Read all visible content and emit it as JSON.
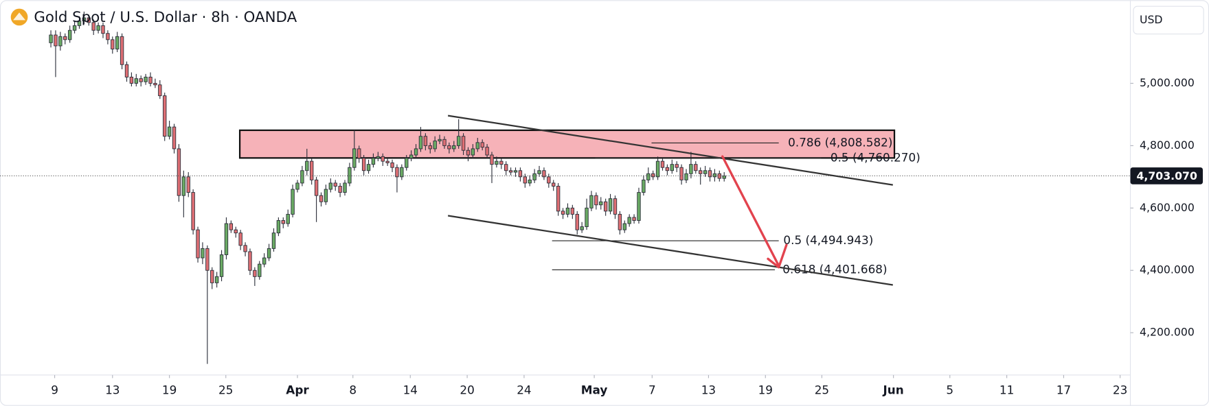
{
  "chart_data": {
    "type": "candlestick",
    "title": "Gold Spot / U.S. Dollar · 8h · OANDA",
    "currency": "USD",
    "up_color": "#6aaa64",
    "down_color": "#de6f74",
    "xlim": [
      -10.73,
      227.5
    ],
    "xticks": [
      {
        "value": 0.8,
        "label": "9"
      },
      {
        "value": 13.0,
        "label": "13"
      },
      {
        "value": 25.0,
        "label": "19"
      },
      {
        "value": 36.9,
        "label": "25"
      },
      {
        "value": 52.0,
        "label": "Apr"
      },
      {
        "value": 63.7,
        "label": "8"
      },
      {
        "value": 75.8,
        "label": "14"
      },
      {
        "value": 87.8,
        "label": "20"
      },
      {
        "value": 99.8,
        "label": "24"
      },
      {
        "value": 114.6,
        "label": "May"
      },
      {
        "value": 126.8,
        "label": "7"
      },
      {
        "value": 138.7,
        "label": "13"
      },
      {
        "value": 150.7,
        "label": "19"
      },
      {
        "value": 162.6,
        "label": "25"
      },
      {
        "value": 177.7,
        "label": "Jun"
      },
      {
        "value": 189.6,
        "label": "5"
      },
      {
        "value": 201.6,
        "label": "11"
      },
      {
        "value": 213.6,
        "label": "17"
      },
      {
        "value": 225.5,
        "label": "23"
      }
    ],
    "ylim": [
      4064.2,
      5266.7
    ],
    "yticks": [
      {
        "value": 4200,
        "label": "4,200.000"
      },
      {
        "value": 4400,
        "label": "4,400.000"
      },
      {
        "value": 4600,
        "label": "4,600.000"
      },
      {
        "value": 4800,
        "label": "4,800.000"
      },
      {
        "value": 5000,
        "label": "5,000.000"
      }
    ],
    "last_price": {
      "value": 4703.07,
      "label": "4,703.070"
    },
    "fib_levels": [
      {
        "value": 4808.582,
        "label": "0.786 (4,808.582)"
      },
      {
        "value": 4760.27,
        "label": "0.5 (4,760.270)"
      },
      {
        "value": 4494.943,
        "label": "0.5 (4,494.943)"
      },
      {
        "value": 4401.668,
        "label": "0.618 (4,401.668)"
      }
    ],
    "open": [
      5130,
      5155,
      5120,
      5150,
      5140,
      5170,
      5185,
      5200,
      5210,
      5195,
      5170,
      5185,
      5160,
      5140,
      5110,
      5150,
      5060,
      5020,
      5000,
      5015,
      5005,
      5020,
      5000,
      4995,
      4960,
      4830,
      4860,
      4790,
      4640,
      4700,
      4650,
      4530,
      4440,
      4470,
      4400,
      4360,
      4380,
      4450,
      4550,
      4530,
      4520,
      4480,
      4460,
      4400,
      4380,
      4420,
      4440,
      4470,
      4520,
      4560,
      4550,
      4580,
      4660,
      4680,
      4720,
      4750,
      4690,
      4640,
      4620,
      4660,
      4680,
      4670,
      4650,
      4680,
      4730,
      4790,
      4760,
      4720,
      4740,
      4760,
      4765,
      4750,
      4745,
      4730,
      4700,
      4730,
      4760,
      4770,
      4790,
      4830,
      4800,
      4790,
      4815,
      4820,
      4800,
      4790,
      4800,
      4830,
      4785,
      4770,
      4790,
      4810,
      4795,
      4770,
      4740,
      4750,
      4740,
      4720,
      4715,
      4720,
      4700,
      4680,
      4690,
      4710,
      4720,
      4700,
      4680,
      4670,
      4590,
      4580,
      4600,
      4580,
      4530,
      4540,
      4600,
      4640,
      4610,
      4620,
      4590,
      4630,
      4580,
      4530,
      4550,
      4570,
      4560,
      4650,
      4690,
      4710,
      4700,
      4750,
      4730,
      4720,
      4740,
      4730,
      4690,
      4710,
      4740,
      4720,
      4710,
      4720,
      4700,
      4710,
      4695
    ],
    "high": [
      5170,
      5170,
      5165,
      5160,
      5185,
      5200,
      5215,
      5230,
      5220,
      5205,
      5195,
      5195,
      5170,
      5150,
      5165,
      5160,
      5070,
      5035,
      5030,
      5025,
      5030,
      5035,
      5015,
      5010,
      4970,
      4880,
      4870,
      4805,
      4720,
      4715,
      4660,
      4540,
      4490,
      4480,
      4410,
      4395,
      4465,
      4570,
      4560,
      4540,
      4530,
      4490,
      4470,
      4410,
      4430,
      4455,
      4485,
      4535,
      4570,
      4570,
      4595,
      4675,
      4690,
      4735,
      4790,
      4760,
      4700,
      4650,
      4675,
      4695,
      4690,
      4680,
      4690,
      4745,
      4850,
      4800,
      4770,
      4755,
      4775,
      4780,
      4775,
      4760,
      4755,
      4740,
      4740,
      4770,
      4785,
      4805,
      4860,
      4840,
      4810,
      4830,
      4835,
      4830,
      4810,
      4815,
      4885,
      4840,
      4795,
      4805,
      4825,
      4820,
      4805,
      4780,
      4765,
      4760,
      4750,
      4730,
      4730,
      4730,
      4710,
      4705,
      4725,
      4735,
      4730,
      4710,
      4690,
      4680,
      4600,
      4615,
      4610,
      4590,
      4555,
      4630,
      4655,
      4650,
      4635,
      4630,
      4645,
      4640,
      4590,
      4560,
      4580,
      4580,
      4665,
      4705,
      4730,
      4720,
      4765,
      4760,
      4740,
      4755,
      4750,
      4740,
      4725,
      4780,
      4750,
      4730,
      4735,
      4730,
      4725,
      4720,
      4715
    ],
    "low": [
      5115,
      5020,
      5105,
      5125,
      5130,
      5160,
      5175,
      5190,
      5185,
      5155,
      5160,
      5145,
      5125,
      5095,
      5100,
      5045,
      5005,
      4990,
      4990,
      4990,
      4995,
      4990,
      4985,
      4950,
      4815,
      4820,
      4775,
      4620,
      4570,
      4635,
      4515,
      4425,
      4420,
      4100,
      4340,
      4345,
      4365,
      4435,
      4520,
      4505,
      4465,
      4445,
      4385,
      4350,
      4370,
      4410,
      4430,
      4460,
      4510,
      4535,
      4540,
      4570,
      4650,
      4670,
      4705,
      4675,
      4555,
      4605,
      4610,
      4650,
      4655,
      4635,
      4640,
      4670,
      4720,
      4745,
      4705,
      4710,
      4730,
      4750,
      4735,
      4735,
      4715,
      4650,
      4690,
      4720,
      4750,
      4760,
      4780,
      4785,
      4775,
      4780,
      4805,
      4790,
      4775,
      4780,
      4790,
      4770,
      4750,
      4760,
      4780,
      4785,
      4760,
      4680,
      4730,
      4725,
      4705,
      4705,
      4700,
      4685,
      4665,
      4670,
      4680,
      4700,
      4690,
      4665,
      4655,
      4575,
      4565,
      4570,
      4565,
      4515,
      4520,
      4530,
      4590,
      4595,
      4595,
      4575,
      4580,
      4565,
      4515,
      4520,
      4540,
      4550,
      4550,
      4640,
      4680,
      4690,
      4690,
      4720,
      4705,
      4710,
      4715,
      4675,
      4680,
      4695,
      4710,
      4675,
      4700,
      4685,
      4685,
      4685,
      4685
    ],
    "close": [
      5155,
      5120,
      5150,
      5140,
      5170,
      5185,
      5200,
      5210,
      5195,
      5170,
      5185,
      5160,
      5140,
      5110,
      5150,
      5060,
      5020,
      5000,
      5015,
      5005,
      5020,
      5000,
      4995,
      4960,
      4830,
      4860,
      4790,
      4640,
      4700,
      4650,
      4530,
      4440,
      4470,
      4400,
      4360,
      4380,
      4450,
      4550,
      4530,
      4520,
      4480,
      4460,
      4400,
      4380,
      4420,
      4440,
      4470,
      4520,
      4560,
      4550,
      4580,
      4660,
      4680,
      4720,
      4750,
      4690,
      4640,
      4620,
      4660,
      4680,
      4670,
      4650,
      4680,
      4730,
      4790,
      4760,
      4720,
      4740,
      4760,
      4765,
      4750,
      4745,
      4730,
      4700,
      4730,
      4760,
      4770,
      4790,
      4830,
      4800,
      4790,
      4815,
      4820,
      4800,
      4790,
      4800,
      4830,
      4785,
      4770,
      4790,
      4810,
      4795,
      4770,
      4740,
      4750,
      4740,
      4720,
      4715,
      4720,
      4700,
      4680,
      4690,
      4710,
      4720,
      4700,
      4680,
      4670,
      4590,
      4580,
      4600,
      4580,
      4530,
      4540,
      4600,
      4640,
      4610,
      4620,
      4590,
      4630,
      4580,
      4530,
      4550,
      4570,
      4560,
      4650,
      4690,
      4710,
      4700,
      4750,
      4730,
      4720,
      4740,
      4730,
      4690,
      4710,
      4740,
      4720,
      4710,
      4720,
      4700,
      4710,
      4695,
      4703.07
    ]
  }
}
